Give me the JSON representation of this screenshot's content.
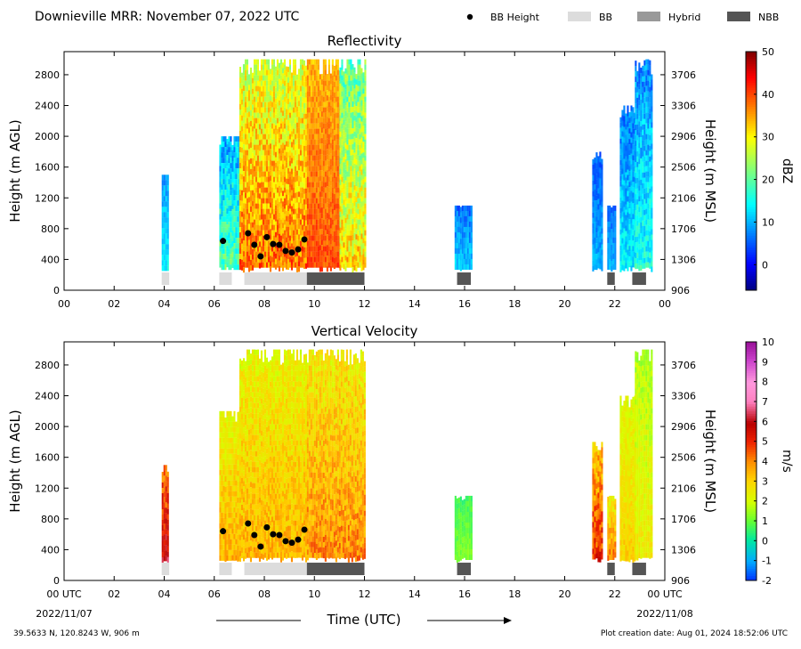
{
  "header": {
    "title": "Downieville MRR:  November 07, 2022 UTC",
    "legend": [
      {
        "label": "BB Height",
        "kind": "dot",
        "color": "#000000"
      },
      {
        "label": "BB",
        "kind": "bar",
        "color": "#dcdcdc"
      },
      {
        "label": "Hybrid",
        "kind": "bar",
        "color": "#999999"
      },
      {
        "label": "NBB",
        "kind": "bar",
        "color": "#555555"
      }
    ]
  },
  "footer": {
    "location": "39.5633 N, 120.8243 W, 906 m",
    "creation": "Plot creation date: Aug 01, 2024 18:52:06 UTC",
    "xlabel": "Time (UTC)",
    "date_start": "2022/11/07",
    "date_end": "2022/11/08"
  },
  "chart_data": [
    {
      "type": "heatmap",
      "title": "Reflectivity",
      "ylabel": "Height (m AGL)",
      "ylabel_right": "Height (m MSL)",
      "colorbar_label": "dBZ",
      "xlim": [
        0,
        24
      ],
      "ylim": [
        0,
        3100
      ],
      "x_ticks": [
        "00",
        "02",
        "04",
        "06",
        "08",
        "10",
        "12",
        "14",
        "16",
        "18",
        "20",
        "22",
        "00"
      ],
      "y_ticks": [
        0,
        400,
        800,
        1200,
        1600,
        2000,
        2400,
        2800
      ],
      "y_ticks_right": [
        "906",
        "1306",
        "1706",
        "2106",
        "2506",
        "2906",
        "3306",
        "3706"
      ],
      "colorbar_ticks": [
        0,
        10,
        20,
        30,
        40,
        50
      ],
      "colorbar_range": [
        -6,
        50
      ],
      "bb_height_points": [
        [
          6.35,
          640
        ],
        [
          7.35,
          740
        ],
        [
          7.6,
          590
        ],
        [
          7.85,
          440
        ],
        [
          8.1,
          690
        ],
        [
          8.35,
          600
        ],
        [
          8.6,
          590
        ],
        [
          8.85,
          510
        ],
        [
          9.1,
          490
        ],
        [
          9.35,
          530
        ],
        [
          9.6,
          660
        ]
      ],
      "bb_segments": [
        {
          "type": "BB",
          "start": 3.9,
          "end": 4.2
        },
        {
          "type": "BB",
          "start": 6.2,
          "end": 6.7
        },
        {
          "type": "BB",
          "start": 7.2,
          "end": 9.7
        },
        {
          "type": "NBB",
          "start": 9.7,
          "end": 12.0
        },
        {
          "type": "NBB",
          "start": 15.7,
          "end": 16.25
        },
        {
          "type": "NBB",
          "start": 21.7,
          "end": 22.0
        },
        {
          "type": "NBB",
          "start": 22.7,
          "end": 23.25
        }
      ],
      "echo_regions": [
        {
          "start": 3.9,
          "end": 4.15,
          "top": 1500,
          "low": 5,
          "high": 14
        },
        {
          "start": 6.2,
          "end": 7.0,
          "top": 2000,
          "low": 3,
          "high": 20
        },
        {
          "start": 7.0,
          "end": 9.7,
          "top": 3000,
          "low": 20,
          "high": 38
        },
        {
          "start": 9.7,
          "end": 11.0,
          "top": 3000,
          "low": 30,
          "high": 40
        },
        {
          "start": 11.0,
          "end": 12.0,
          "top": 3000,
          "low": 12,
          "high": 32
        },
        {
          "start": 15.6,
          "end": 16.3,
          "top": 1100,
          "low": 2,
          "high": 12
        },
        {
          "start": 21.1,
          "end": 21.5,
          "top": 1800,
          "low": 2,
          "high": 10
        },
        {
          "start": 21.7,
          "end": 22.0,
          "top": 1100,
          "low": 3,
          "high": 10
        },
        {
          "start": 22.2,
          "end": 22.8,
          "top": 2400,
          "low": 2,
          "high": 14
        },
        {
          "start": 22.8,
          "end": 23.5,
          "top": 3000,
          "low": 2,
          "high": 16
        }
      ]
    },
    {
      "type": "heatmap",
      "title": "Vertical Velocity",
      "ylabel": "Height (m AGL)",
      "ylabel_right": "Height (m MSL)",
      "colorbar_label": "m/s",
      "xlim": [
        0,
        24
      ],
      "ylim": [
        0,
        3100
      ],
      "x_ticks": [
        "00 UTC",
        "02",
        "04",
        "06",
        "08",
        "10",
        "12",
        "14",
        "16",
        "18",
        "20",
        "22",
        "00 UTC"
      ],
      "y_ticks": [
        0,
        400,
        800,
        1200,
        1600,
        2000,
        2400,
        2800
      ],
      "y_ticks_right": [
        "906",
        "1306",
        "1706",
        "2106",
        "2506",
        "2906",
        "3306",
        "3706"
      ],
      "colorbar_ticks": [
        -2,
        -1,
        0,
        1,
        2,
        3,
        4,
        5,
        6,
        7,
        8,
        9,
        10
      ],
      "colorbar_range": [
        -2,
        10
      ],
      "bb_height_points": [
        [
          6.35,
          640
        ],
        [
          7.35,
          740
        ],
        [
          7.6,
          590
        ],
        [
          7.85,
          440
        ],
        [
          8.1,
          690
        ],
        [
          8.35,
          600
        ],
        [
          8.6,
          590
        ],
        [
          8.85,
          510
        ],
        [
          9.1,
          490
        ],
        [
          9.35,
          530
        ],
        [
          9.6,
          660
        ]
      ],
      "bb_segments": [
        {
          "type": "BB",
          "start": 3.9,
          "end": 4.2
        },
        {
          "type": "BB",
          "start": 6.2,
          "end": 6.7
        },
        {
          "type": "BB",
          "start": 7.2,
          "end": 9.7
        },
        {
          "type": "NBB",
          "start": 9.7,
          "end": 12.0
        },
        {
          "type": "NBB",
          "start": 15.7,
          "end": 16.25
        },
        {
          "type": "NBB",
          "start": 21.7,
          "end": 22.0
        },
        {
          "type": "NBB",
          "start": 22.7,
          "end": 23.25
        }
      ],
      "echo_regions": [
        {
          "start": 3.9,
          "end": 4.15,
          "top": 1500,
          "low": 3,
          "high": 6
        },
        {
          "start": 6.2,
          "end": 7.0,
          "top": 2200,
          "low": 1.5,
          "high": 3.5
        },
        {
          "start": 7.0,
          "end": 9.7,
          "top": 3000,
          "low": 1.5,
          "high": 3.5
        },
        {
          "start": 9.7,
          "end": 12.0,
          "top": 3000,
          "low": 1.5,
          "high": 4
        },
        {
          "start": 15.6,
          "end": 16.3,
          "top": 1100,
          "low": 0.3,
          "high": 1.2
        },
        {
          "start": 21.1,
          "end": 21.5,
          "top": 1800,
          "low": 2,
          "high": 5
        },
        {
          "start": 21.7,
          "end": 22.0,
          "top": 1100,
          "low": 1.5,
          "high": 4
        },
        {
          "start": 22.2,
          "end": 22.8,
          "top": 2400,
          "low": 1.5,
          "high": 3
        },
        {
          "start": 22.8,
          "end": 23.5,
          "top": 3000,
          "low": 1,
          "high": 2.5
        }
      ]
    }
  ]
}
